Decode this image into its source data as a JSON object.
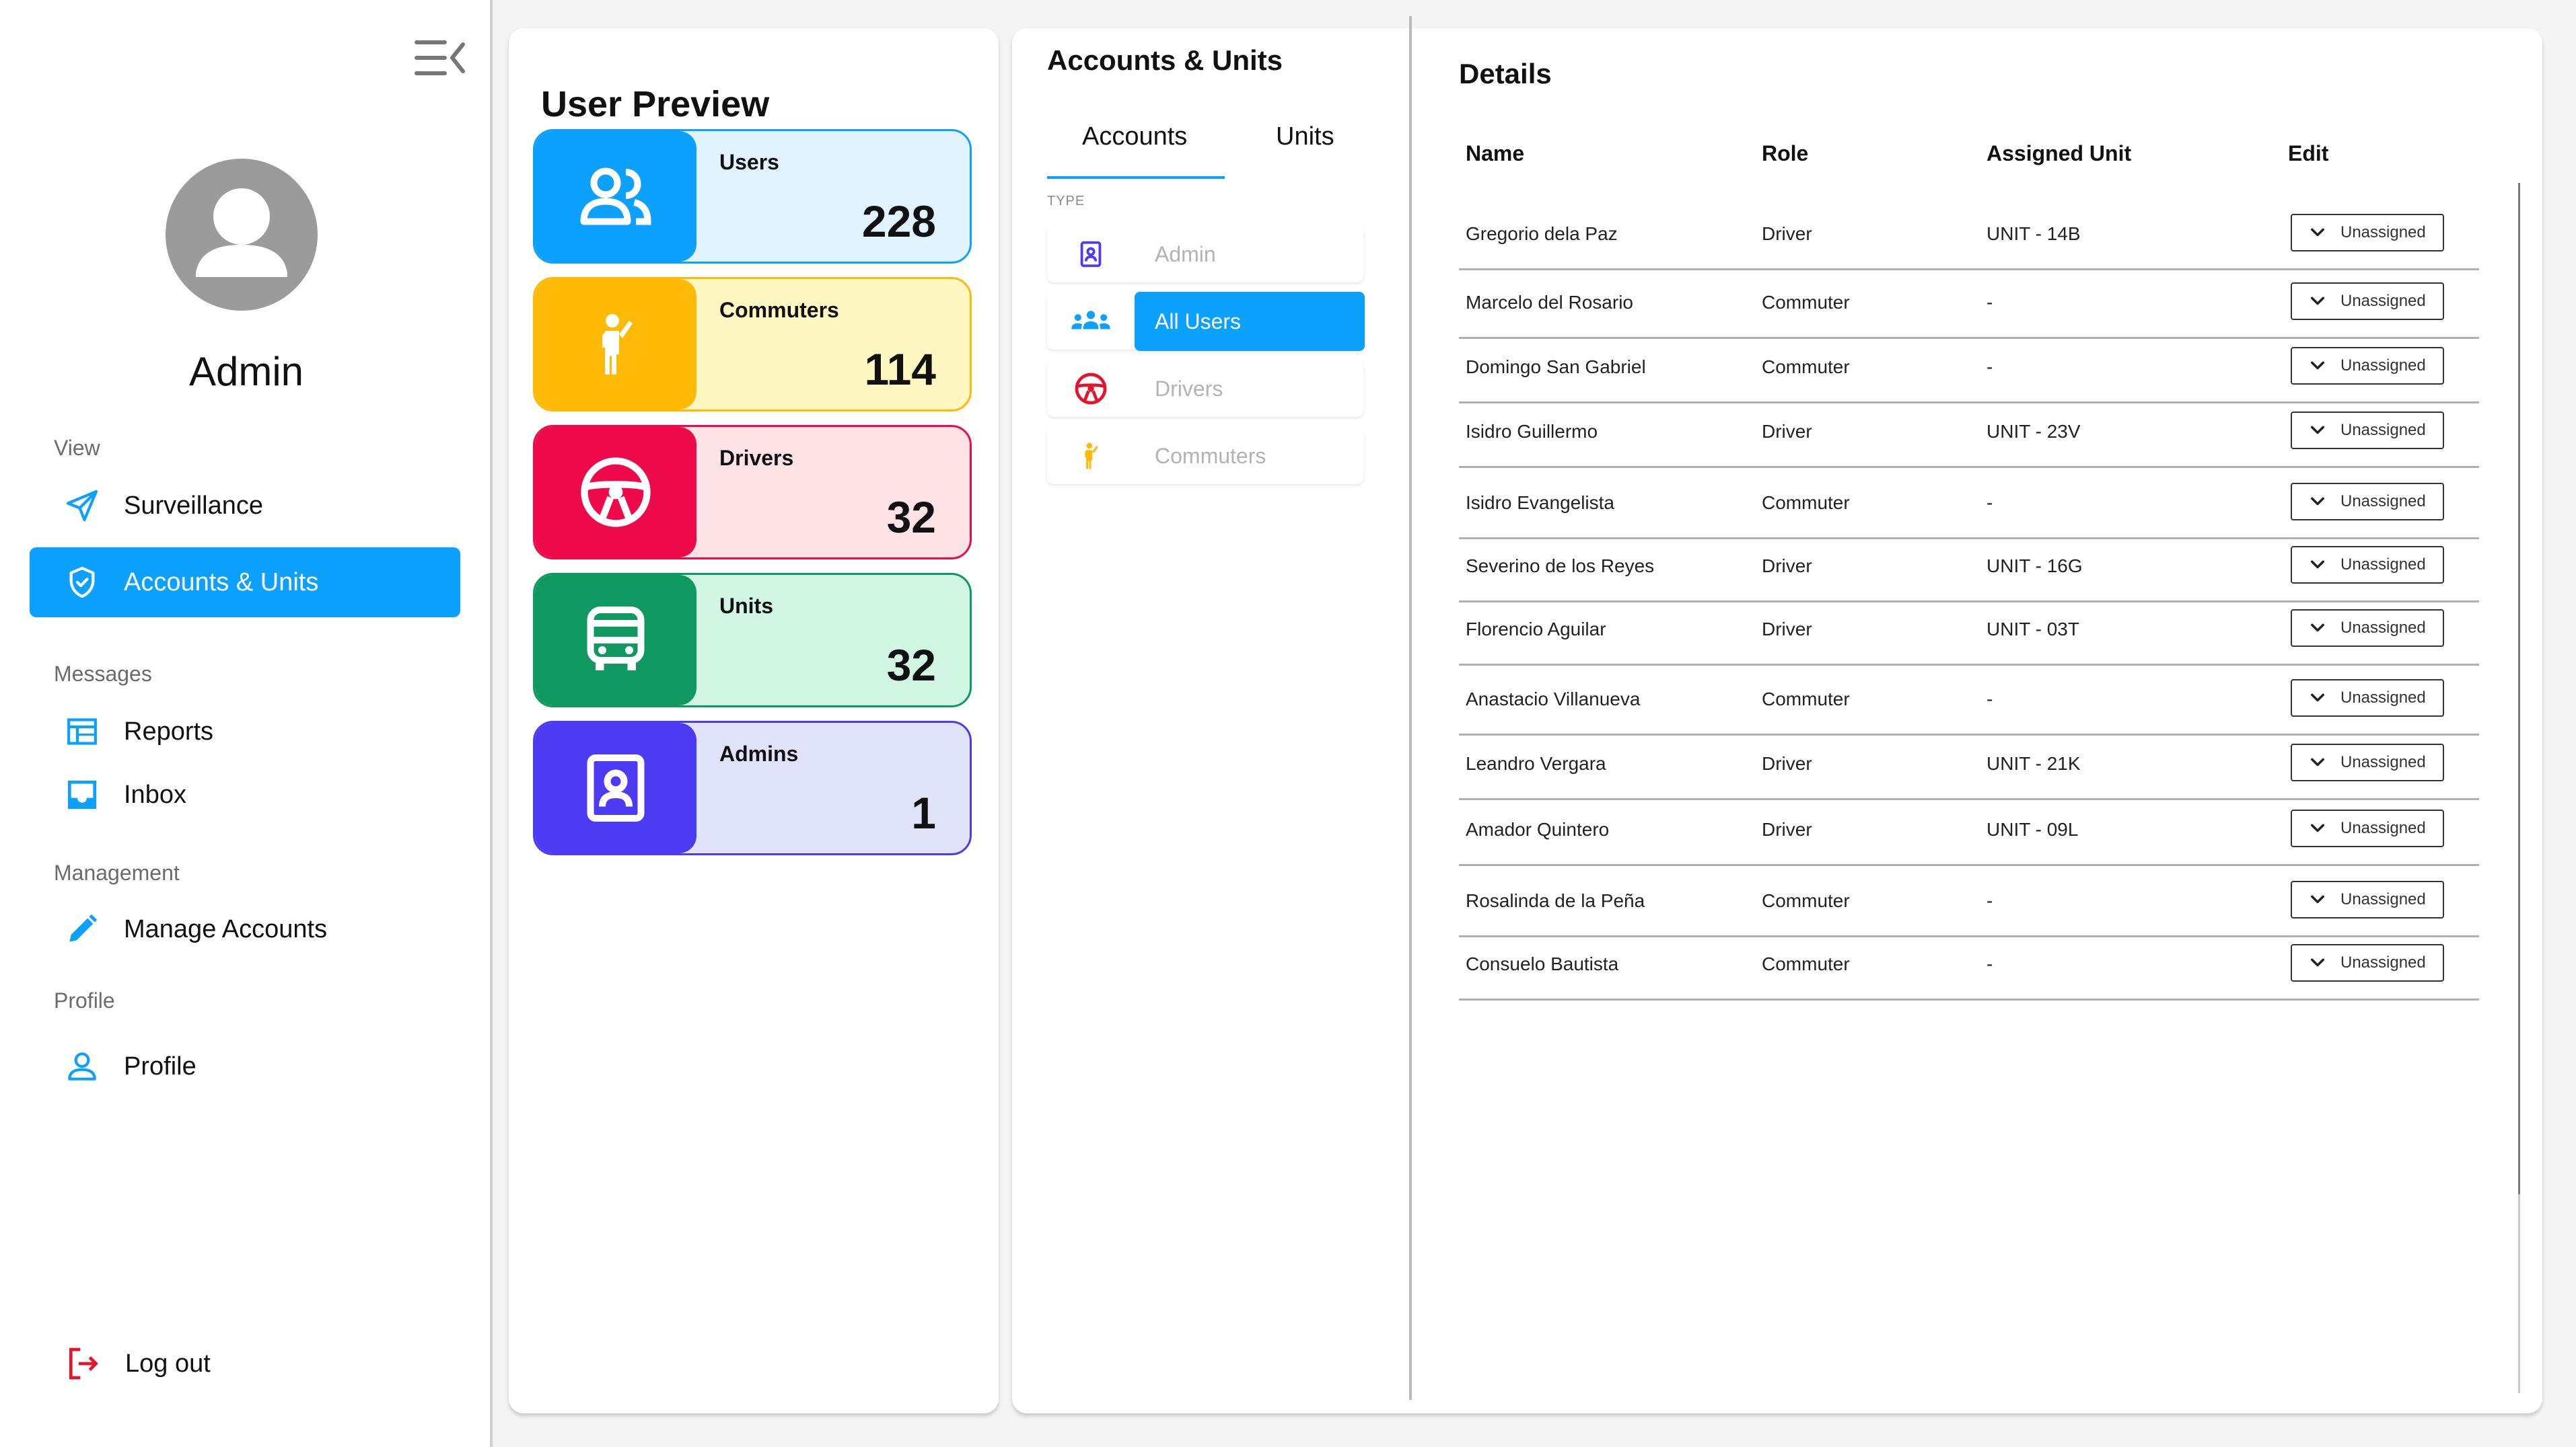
{
  "sidebar": {
    "user_name": "Admin",
    "sections": {
      "view": "View",
      "messages": "Messages",
      "management": "Management",
      "profile": "Profile"
    },
    "items": {
      "surveillance": "Surveillance",
      "accounts_units": "Accounts & Units",
      "reports": "Reports",
      "inbox": "Inbox",
      "manage_accounts": "Manage Accounts",
      "profile": "Profile"
    },
    "logout": "Log out",
    "accent": "#0ca1ff"
  },
  "preview": {
    "title": "User Preview",
    "cards": [
      {
        "label": "Users",
        "value": "228",
        "color": "#0ca1ff",
        "bg": "#e0f3ff",
        "icon": "users-icon"
      },
      {
        "label": "Commuters",
        "value": "114",
        "color": "#ffba08",
        "bg": "#fff7c2",
        "icon": "commuter-icon"
      },
      {
        "label": "Drivers",
        "value": "32",
        "color": "#ee0a4a",
        "bg": "#fde2e6",
        "icon": "steering-wheel-icon"
      },
      {
        "label": "Units",
        "value": "32",
        "color": "#0f9960",
        "bg": "#d1f7e4",
        "icon": "bus-icon"
      },
      {
        "label": "Admins",
        "value": "1",
        "color": "#4d3bf3",
        "bg": "#e1e3fa",
        "icon": "admin-badge-icon"
      }
    ]
  },
  "accounts_units": {
    "title": "Accounts & Units",
    "tabs": {
      "accounts": "Accounts",
      "units": "Units"
    },
    "type_label": "TYPE",
    "types": {
      "admin": "Admin",
      "all_users": "All Users",
      "drivers": "Drivers",
      "commuters": "Commuters"
    }
  },
  "details": {
    "title": "Details",
    "headers": {
      "name": "Name",
      "role": "Role",
      "unit": "Assigned Unit",
      "edit": "Edit"
    },
    "rows": [
      {
        "name": "Gregorio dela Paz",
        "role": "Driver",
        "unit": "UNIT - 14B",
        "edit": "Unassigned"
      },
      {
        "name": "Marcelo del Rosario",
        "role": "Commuter",
        "unit": "-",
        "edit": "Unassigned"
      },
      {
        "name": "Domingo San Gabriel",
        "role": "Commuter",
        "unit": "-",
        "edit": "Unassigned"
      },
      {
        "name": "Isidro Guillermo",
        "role": "Driver",
        "unit": "UNIT - 23V",
        "edit": "Unassigned"
      },
      {
        "name": "Isidro Evangelista",
        "role": "Commuter",
        "unit": "-",
        "edit": "Unassigned"
      },
      {
        "name": "Severino de los Reyes",
        "role": "Driver",
        "unit": "UNIT - 16G",
        "edit": "Unassigned"
      },
      {
        "name": "Florencio Aguilar",
        "role": "Driver",
        "unit": "UNIT - 03T",
        "edit": "Unassigned"
      },
      {
        "name": "Anastacio Villanueva",
        "role": "Commuter",
        "unit": "-",
        "edit": "Unassigned"
      },
      {
        "name": "Leandro Vergara",
        "role": "Driver",
        "unit": "UNIT - 21K",
        "edit": "Unassigned"
      },
      {
        "name": "Amador Quintero",
        "role": "Driver",
        "unit": "UNIT - 09L",
        "edit": "Unassigned"
      },
      {
        "name": "Rosalinda de la Peña",
        "role": "Commuter",
        "unit": "-",
        "edit": "Unassigned"
      },
      {
        "name": "Consuelo Bautista",
        "role": "Commuter",
        "unit": "-",
        "edit": "Unassigned"
      }
    ]
  }
}
